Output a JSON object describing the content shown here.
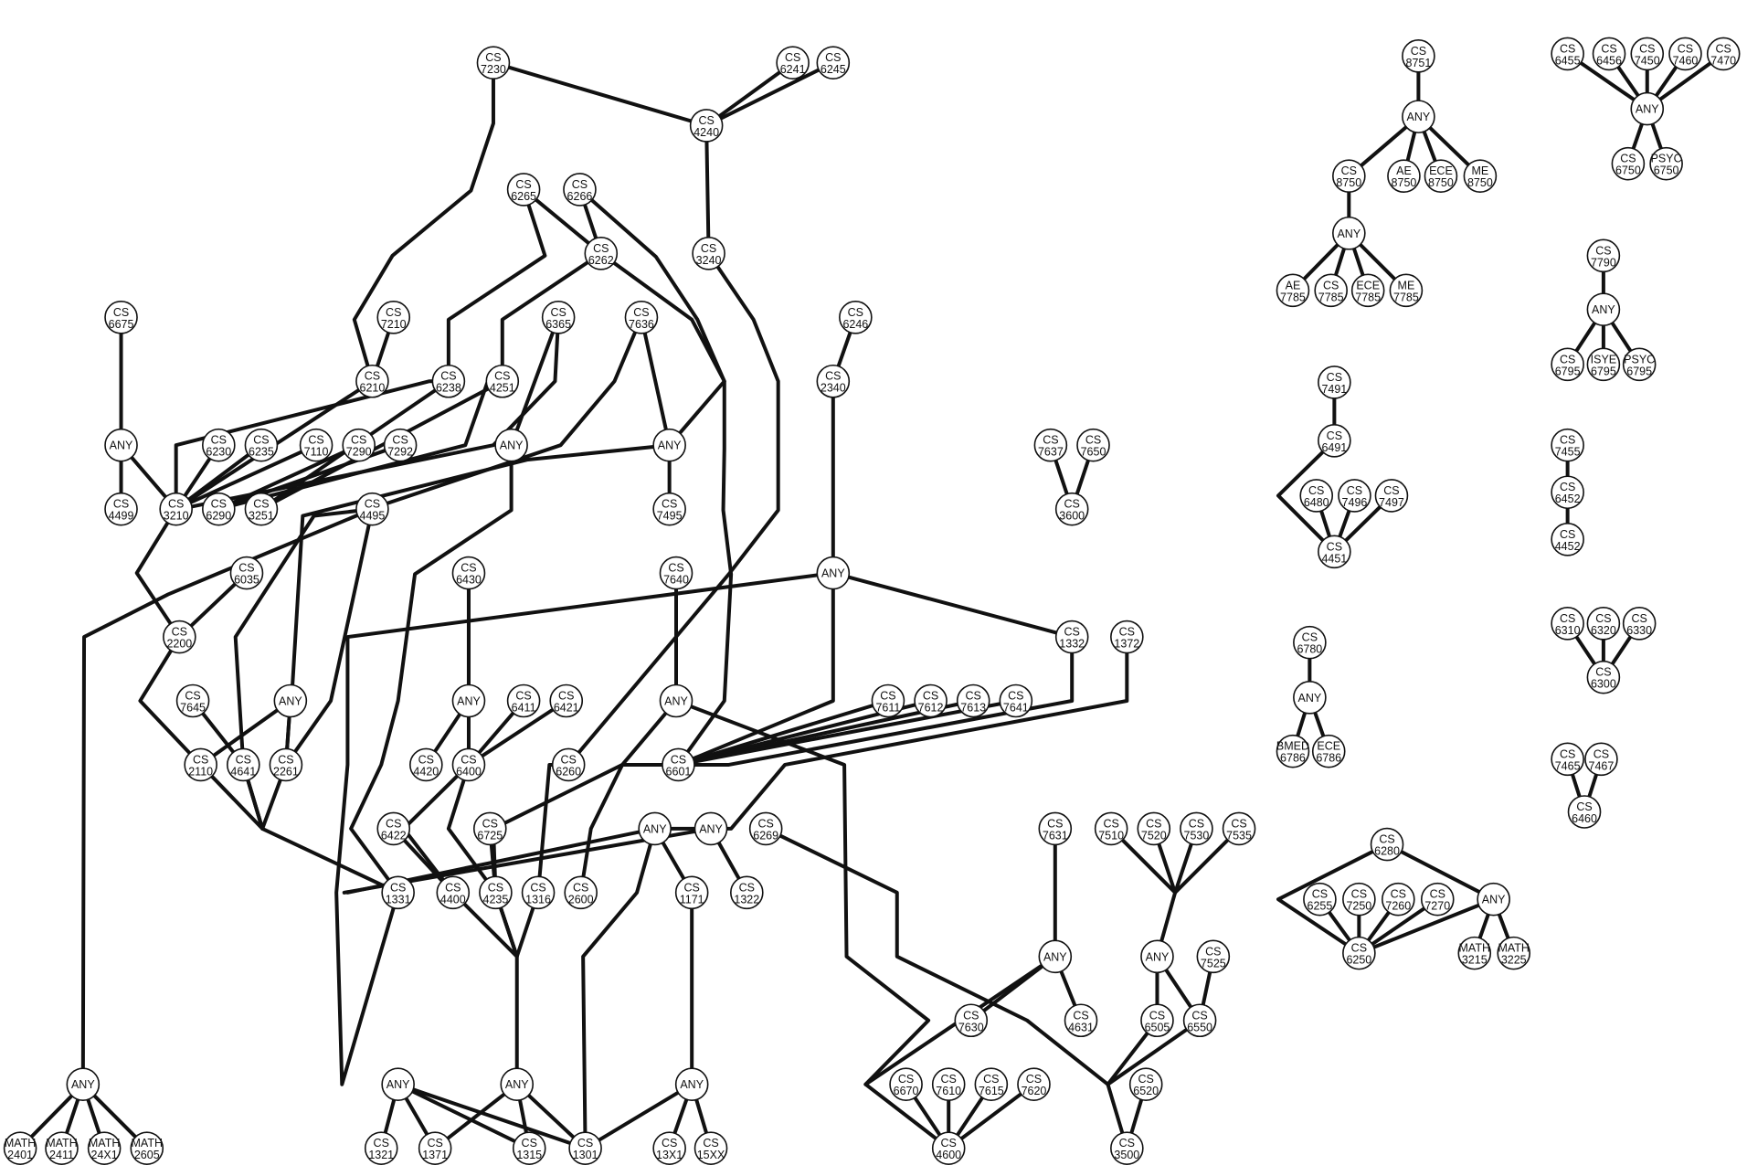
{
  "title": "",
  "nodes": [
    {
      "id": "cs7230",
      "l1": "CS",
      "l2": "7230"
    },
    {
      "id": "cs6241",
      "l1": "CS",
      "l2": "6241"
    },
    {
      "id": "cs6245",
      "l1": "CS",
      "l2": "6245"
    },
    {
      "id": "cs4240",
      "l1": "CS",
      "l2": "4240"
    },
    {
      "id": "cs3240",
      "l1": "CS",
      "l2": "3240"
    },
    {
      "id": "cs6265",
      "l1": "CS",
      "l2": "6265"
    },
    {
      "id": "cs6266",
      "l1": "CS",
      "l2": "6266"
    },
    {
      "id": "cs6262",
      "l1": "CS",
      "l2": "6262"
    },
    {
      "id": "cs6675",
      "l1": "CS",
      "l2": "6675"
    },
    {
      "id": "cs7210",
      "l1": "CS",
      "l2": "7210"
    },
    {
      "id": "cs6365",
      "l1": "CS",
      "l2": "6365"
    },
    {
      "id": "cs7636",
      "l1": "CS",
      "l2": "7636"
    },
    {
      "id": "cs6246",
      "l1": "CS",
      "l2": "6246"
    },
    {
      "id": "cs6210",
      "l1": "CS",
      "l2": "6210"
    },
    {
      "id": "cs6238",
      "l1": "CS",
      "l2": "6238"
    },
    {
      "id": "cs4251",
      "l1": "CS",
      "l2": "4251"
    },
    {
      "id": "cs2340",
      "l1": "CS",
      "l2": "2340"
    },
    {
      "id": "any_a",
      "l1": "ANY",
      "l2": ""
    },
    {
      "id": "cs6230",
      "l1": "CS",
      "l2": "6230"
    },
    {
      "id": "cs6235",
      "l1": "CS",
      "l2": "6235"
    },
    {
      "id": "cs7110",
      "l1": "CS",
      "l2": "7110"
    },
    {
      "id": "cs7290",
      "l1": "CS",
      "l2": "7290"
    },
    {
      "id": "cs7292",
      "l1": "CS",
      "l2": "7292"
    },
    {
      "id": "any_b",
      "l1": "ANY",
      "l2": ""
    },
    {
      "id": "any_c",
      "l1": "ANY",
      "l2": ""
    },
    {
      "id": "cs4499",
      "l1": "CS",
      "l2": "4499"
    },
    {
      "id": "cs3210",
      "l1": "CS",
      "l2": "3210"
    },
    {
      "id": "cs6290",
      "l1": "CS",
      "l2": "6290"
    },
    {
      "id": "cs3251",
      "l1": "CS",
      "l2": "3251"
    },
    {
      "id": "cs4495",
      "l1": "CS",
      "l2": "4495"
    },
    {
      "id": "cs7495",
      "l1": "CS",
      "l2": "7495"
    },
    {
      "id": "cs7637",
      "l1": "CS",
      "l2": "7637"
    },
    {
      "id": "cs7650",
      "l1": "CS",
      "l2": "7650"
    },
    {
      "id": "cs3600",
      "l1": "CS",
      "l2": "3600"
    },
    {
      "id": "cs6035",
      "l1": "CS",
      "l2": "6035"
    },
    {
      "id": "cs6430",
      "l1": "CS",
      "l2": "6430"
    },
    {
      "id": "cs7640",
      "l1": "CS",
      "l2": "7640"
    },
    {
      "id": "any_d",
      "l1": "ANY",
      "l2": ""
    },
    {
      "id": "cs2200",
      "l1": "CS",
      "l2": "2200"
    },
    {
      "id": "cs1332",
      "l1": "CS",
      "l2": "1332"
    },
    {
      "id": "cs1372",
      "l1": "CS",
      "l2": "1372"
    },
    {
      "id": "cs7645",
      "l1": "CS",
      "l2": "7645"
    },
    {
      "id": "any_e",
      "l1": "ANY",
      "l2": ""
    },
    {
      "id": "any_f",
      "l1": "ANY",
      "l2": ""
    },
    {
      "id": "cs6411",
      "l1": "CS",
      "l2": "6411"
    },
    {
      "id": "cs6421",
      "l1": "CS",
      "l2": "6421"
    },
    {
      "id": "any_g",
      "l1": "ANY",
      "l2": ""
    },
    {
      "id": "cs7611",
      "l1": "CS",
      "l2": "7611"
    },
    {
      "id": "cs7612",
      "l1": "CS",
      "l2": "7612"
    },
    {
      "id": "cs7613",
      "l1": "CS",
      "l2": "7613"
    },
    {
      "id": "cs7641",
      "l1": "CS",
      "l2": "7641"
    },
    {
      "id": "cs2110",
      "l1": "CS",
      "l2": "2110"
    },
    {
      "id": "cs4641",
      "l1": "CS",
      "l2": "4641"
    },
    {
      "id": "cs2261",
      "l1": "CS",
      "l2": "2261"
    },
    {
      "id": "cs4420",
      "l1": "CS",
      "l2": "4420"
    },
    {
      "id": "cs6400",
      "l1": "CS",
      "l2": "6400"
    },
    {
      "id": "cs6260",
      "l1": "CS",
      "l2": "6260"
    },
    {
      "id": "cs6601",
      "l1": "CS",
      "l2": "6601"
    },
    {
      "id": "cs6422",
      "l1": "CS",
      "l2": "6422"
    },
    {
      "id": "cs6725",
      "l1": "CS",
      "l2": "6725"
    },
    {
      "id": "any_h",
      "l1": "ANY",
      "l2": ""
    },
    {
      "id": "any_i",
      "l1": "ANY",
      "l2": ""
    },
    {
      "id": "cs6269",
      "l1": "CS",
      "l2": "6269"
    },
    {
      "id": "cs7631",
      "l1": "CS",
      "l2": "7631"
    },
    {
      "id": "cs7510",
      "l1": "CS",
      "l2": "7510"
    },
    {
      "id": "cs7520",
      "l1": "CS",
      "l2": "7520"
    },
    {
      "id": "cs7530",
      "l1": "CS",
      "l2": "7530"
    },
    {
      "id": "cs7535",
      "l1": "CS",
      "l2": "7535"
    },
    {
      "id": "cs1331",
      "l1": "CS",
      "l2": "1331"
    },
    {
      "id": "cs4400",
      "l1": "CS",
      "l2": "4400"
    },
    {
      "id": "cs4235",
      "l1": "CS",
      "l2": "4235"
    },
    {
      "id": "cs1316",
      "l1": "CS",
      "l2": "1316"
    },
    {
      "id": "cs2600",
      "l1": "CS",
      "l2": "2600"
    },
    {
      "id": "cs1171",
      "l1": "CS",
      "l2": "1171"
    },
    {
      "id": "cs1322",
      "l1": "CS",
      "l2": "1322"
    },
    {
      "id": "any_j",
      "l1": "ANY",
      "l2": ""
    },
    {
      "id": "any_k",
      "l1": "ANY",
      "l2": ""
    },
    {
      "id": "cs7525",
      "l1": "CS",
      "l2": "7525"
    },
    {
      "id": "cs7630",
      "l1": "CS",
      "l2": "7630"
    },
    {
      "id": "cs4631",
      "l1": "CS",
      "l2": "4631"
    },
    {
      "id": "cs6505",
      "l1": "CS",
      "l2": "6505"
    },
    {
      "id": "cs6550",
      "l1": "CS",
      "l2": "6550"
    },
    {
      "id": "any_l",
      "l1": "ANY",
      "l2": ""
    },
    {
      "id": "any_m",
      "l1": "ANY",
      "l2": ""
    },
    {
      "id": "any_n",
      "l1": "ANY",
      "l2": ""
    },
    {
      "id": "any_o",
      "l1": "ANY",
      "l2": ""
    },
    {
      "id": "cs6670",
      "l1": "CS",
      "l2": "6670"
    },
    {
      "id": "cs7610",
      "l1": "CS",
      "l2": "7610"
    },
    {
      "id": "cs7615",
      "l1": "CS",
      "l2": "7615"
    },
    {
      "id": "cs7620",
      "l1": "CS",
      "l2": "7620"
    },
    {
      "id": "cs6520",
      "l1": "CS",
      "l2": "6520"
    },
    {
      "id": "math2401",
      "l1": "MATH",
      "l2": "2401"
    },
    {
      "id": "math2411",
      "l1": "MATH",
      "l2": "2411"
    },
    {
      "id": "math24x1",
      "l1": "MATH",
      "l2": "24X1"
    },
    {
      "id": "math2605",
      "l1": "MATH",
      "l2": "2605"
    },
    {
      "id": "cs1321",
      "l1": "CS",
      "l2": "1321"
    },
    {
      "id": "cs1371",
      "l1": "CS",
      "l2": "1371"
    },
    {
      "id": "cs1315",
      "l1": "CS",
      "l2": "1315"
    },
    {
      "id": "cs1301",
      "l1": "CS",
      "l2": "1301"
    },
    {
      "id": "cs13x1",
      "l1": "CS",
      "l2": "13X1"
    },
    {
      "id": "cs15xx",
      "l1": "CS",
      "l2": "15XX"
    },
    {
      "id": "cs4600",
      "l1": "CS",
      "l2": "4600"
    },
    {
      "id": "cs3500",
      "l1": "CS",
      "l2": "3500"
    },
    {
      "id": "cs8751",
      "l1": "CS",
      "l2": "8751"
    },
    {
      "id": "any_p",
      "l1": "ANY",
      "l2": ""
    },
    {
      "id": "cs8750",
      "l1": "CS",
      "l2": "8750"
    },
    {
      "id": "ae8750",
      "l1": "AE",
      "l2": "8750"
    },
    {
      "id": "ece8750",
      "l1": "ECE",
      "l2": "8750"
    },
    {
      "id": "me8750",
      "l1": "ME",
      "l2": "8750"
    },
    {
      "id": "any_q",
      "l1": "ANY",
      "l2": ""
    },
    {
      "id": "ae7785",
      "l1": "AE",
      "l2": "7785"
    },
    {
      "id": "cs7785",
      "l1": "CS",
      "l2": "7785"
    },
    {
      "id": "ece7785",
      "l1": "ECE",
      "l2": "7785"
    },
    {
      "id": "me7785",
      "l1": "ME",
      "l2": "7785"
    },
    {
      "id": "cs6455",
      "l1": "CS",
      "l2": "6455"
    },
    {
      "id": "cs6456",
      "l1": "CS",
      "l2": "6456"
    },
    {
      "id": "cs7450",
      "l1": "CS",
      "l2": "7450"
    },
    {
      "id": "cs7460",
      "l1": "CS",
      "l2": "7460"
    },
    {
      "id": "cs7470",
      "l1": "CS",
      "l2": "7470"
    },
    {
      "id": "any_r",
      "l1": "ANY",
      "l2": ""
    },
    {
      "id": "cs6750",
      "l1": "CS",
      "l2": "6750"
    },
    {
      "id": "psyc6750",
      "l1": "PSYC",
      "l2": "6750"
    },
    {
      "id": "cs7790",
      "l1": "CS",
      "l2": "7790"
    },
    {
      "id": "any_s",
      "l1": "ANY",
      "l2": ""
    },
    {
      "id": "cs6795",
      "l1": "CS",
      "l2": "6795"
    },
    {
      "id": "isye6795",
      "l1": "ISYE",
      "l2": "6795"
    },
    {
      "id": "psyc6795",
      "l1": "PSYC",
      "l2": "6795"
    },
    {
      "id": "cs7491",
      "l1": "CS",
      "l2": "7491"
    },
    {
      "id": "cs6491",
      "l1": "CS",
      "l2": "6491"
    },
    {
      "id": "cs6480",
      "l1": "CS",
      "l2": "6480"
    },
    {
      "id": "cs7496",
      "l1": "CS",
      "l2": "7496"
    },
    {
      "id": "cs7497",
      "l1": "CS",
      "l2": "7497"
    },
    {
      "id": "cs4451",
      "l1": "CS",
      "l2": "4451"
    },
    {
      "id": "cs7455",
      "l1": "CS",
      "l2": "7455"
    },
    {
      "id": "cs6452",
      "l1": "CS",
      "l2": "6452"
    },
    {
      "id": "cs4452",
      "l1": "CS",
      "l2": "4452"
    },
    {
      "id": "cs6310",
      "l1": "CS",
      "l2": "6310"
    },
    {
      "id": "cs6320",
      "l1": "CS",
      "l2": "6320"
    },
    {
      "id": "cs6330",
      "l1": "CS",
      "l2": "6330"
    },
    {
      "id": "cs6300",
      "l1": "CS",
      "l2": "6300"
    },
    {
      "id": "cs6780",
      "l1": "CS",
      "l2": "6780"
    },
    {
      "id": "any_t",
      "l1": "ANY",
      "l2": ""
    },
    {
      "id": "bmed6786",
      "l1": "BMED",
      "l2": "6786"
    },
    {
      "id": "ece6786",
      "l1": "ECE",
      "l2": "6786"
    },
    {
      "id": "cs7465",
      "l1": "CS",
      "l2": "7465"
    },
    {
      "id": "cs7467",
      "l1": "CS",
      "l2": "7467"
    },
    {
      "id": "cs6460",
      "l1": "CS",
      "l2": "6460"
    },
    {
      "id": "cs6280",
      "l1": "CS",
      "l2": "6280"
    },
    {
      "id": "cs6255",
      "l1": "CS",
      "l2": "6255"
    },
    {
      "id": "cs7250",
      "l1": "CS",
      "l2": "7250"
    },
    {
      "id": "cs7260",
      "l1": "CS",
      "l2": "7260"
    },
    {
      "id": "cs7270",
      "l1": "CS",
      "l2": "7270"
    },
    {
      "id": "any_u",
      "l1": "ANY",
      "l2": ""
    },
    {
      "id": "cs6250",
      "l1": "CS",
      "l2": "6250"
    },
    {
      "id": "math3215",
      "l1": "MATH",
      "l2": "3215"
    },
    {
      "id": "math3225",
      "l1": "MATH",
      "l2": "3225"
    }
  ],
  "edges": [
    [
      "cs7230",
      "cs4240"
    ],
    [
      "cs6241",
      "cs4240"
    ],
    [
      "cs6245",
      "cs4240"
    ],
    [
      "cs4240",
      "cs3240"
    ],
    [
      "cs6265",
      "cs6262"
    ],
    [
      "cs6266",
      "cs6262"
    ],
    [
      "cs6675",
      "any_a"
    ],
    [
      "cs7210",
      "cs6210"
    ],
    [
      "any_a",
      "cs4499"
    ],
    [
      "any_a",
      "cs3210"
    ],
    [
      "cs6246",
      "cs2340"
    ],
    [
      "cs7637",
      "cs3600"
    ],
    [
      "cs7650",
      "cs3600"
    ],
    [
      "cs6230",
      "cs3210"
    ],
    [
      "cs6235",
      "cs3210"
    ],
    [
      "cs7110",
      "cs3210"
    ],
    [
      "cs7290",
      "cs6290"
    ],
    [
      "cs7292",
      "cs6290"
    ],
    [
      "any_c",
      "cs7495"
    ],
    [
      "cs7636",
      "any_c"
    ],
    [
      "cs6210",
      "cs3210"
    ],
    [
      "cs6238",
      "cs3251"
    ],
    [
      "cs4251",
      "cs3251"
    ],
    [
      "cs6365",
      "any_b"
    ],
    [
      "cs7640",
      "any_g"
    ],
    [
      "cs6430",
      "any_f"
    ],
    [
      "any_f",
      "cs4420"
    ],
    [
      "any_f",
      "cs6400"
    ],
    [
      "cs6411",
      "cs6400"
    ],
    [
      "cs6421",
      "cs6400"
    ],
    [
      "any_e",
      "cs2110"
    ],
    [
      "any_e",
      "cs2261"
    ],
    [
      "cs7645",
      "cs4641"
    ],
    [
      "cs6035",
      "cs2200"
    ],
    [
      "cs7611",
      "cs6601"
    ],
    [
      "cs7612",
      "cs6601"
    ],
    [
      "cs7613",
      "cs6601"
    ],
    [
      "cs7641",
      "cs6601"
    ],
    [
      "any_h",
      "cs1171"
    ],
    [
      "any_i",
      "cs1322"
    ],
    [
      "cs6422",
      "cs4400"
    ],
    [
      "cs6725",
      "cs4235"
    ],
    [
      "cs7631",
      "any_k"
    ],
    [
      "any_k",
      "cs7630"
    ],
    [
      "any_k",
      "cs4631"
    ],
    [
      "any_l",
      "cs6505"
    ],
    [
      "any_l",
      "cs6550"
    ],
    [
      "cs7525",
      "cs6550"
    ],
    [
      "any_j",
      "cs1321"
    ],
    [
      "any_j",
      "cs1371"
    ],
    [
      "any_j",
      "cs1315"
    ],
    [
      "any_j",
      "cs1301"
    ],
    [
      "any_m",
      "cs1371"
    ],
    [
      "any_m",
      "cs1315"
    ],
    [
      "any_m",
      "cs1301"
    ],
    [
      "any_n",
      "cs13x1"
    ],
    [
      "any_n",
      "cs15xx"
    ],
    [
      "any_n",
      "cs1301"
    ],
    [
      "any_o",
      "math2401"
    ],
    [
      "any_o",
      "math2411"
    ],
    [
      "any_o",
      "math24x1"
    ],
    [
      "any_o",
      "math2605"
    ],
    [
      "cs6670",
      "cs4600"
    ],
    [
      "cs7610",
      "cs4600"
    ],
    [
      "cs7615",
      "cs4600"
    ],
    [
      "cs7620",
      "cs4600"
    ],
    [
      "cs6520",
      "cs3500"
    ],
    [
      "cs8751",
      "any_p"
    ],
    [
      "any_p",
      "cs8750"
    ],
    [
      "any_p",
      "ae8750"
    ],
    [
      "any_p",
      "ece8750"
    ],
    [
      "any_p",
      "me8750"
    ],
    [
      "cs8750",
      "any_q"
    ],
    [
      "any_q",
      "ae7785"
    ],
    [
      "any_q",
      "cs7785"
    ],
    [
      "any_q",
      "ece7785"
    ],
    [
      "any_q",
      "me7785"
    ],
    [
      "cs6455",
      "any_r"
    ],
    [
      "cs6456",
      "any_r"
    ],
    [
      "cs7450",
      "any_r"
    ],
    [
      "cs7460",
      "any_r"
    ],
    [
      "cs7470",
      "any_r"
    ],
    [
      "any_r",
      "cs6750"
    ],
    [
      "any_r",
      "psyc6750"
    ],
    [
      "cs7790",
      "any_s"
    ],
    [
      "any_s",
      "cs6795"
    ],
    [
      "any_s",
      "isye6795"
    ],
    [
      "any_s",
      "psyc6795"
    ],
    [
      "cs7491",
      "cs6491"
    ],
    [
      "cs6480",
      "cs4451"
    ],
    [
      "cs7496",
      "cs4451"
    ],
    [
      "cs7497",
      "cs4451"
    ],
    [
      "cs7455",
      "cs6452"
    ],
    [
      "cs6452",
      "cs4452"
    ],
    [
      "cs6310",
      "cs6300"
    ],
    [
      "cs6320",
      "cs6300"
    ],
    [
      "cs6330",
      "cs6300"
    ],
    [
      "cs6780",
      "any_t"
    ],
    [
      "any_t",
      "bmed6786"
    ],
    [
      "any_t",
      "ece6786"
    ],
    [
      "cs7465",
      "cs6460"
    ],
    [
      "cs7467",
      "cs6460"
    ],
    [
      "cs6280",
      "any_u"
    ],
    [
      "cs6255",
      "cs6250"
    ],
    [
      "cs7250",
      "cs6250"
    ],
    [
      "cs7260",
      "cs6250"
    ],
    [
      "cs7270",
      "cs6250"
    ],
    [
      "any_u",
      "cs6250"
    ],
    [
      "any_u",
      "math3215"
    ],
    [
      "any_u",
      "math3225"
    ]
  ]
}
